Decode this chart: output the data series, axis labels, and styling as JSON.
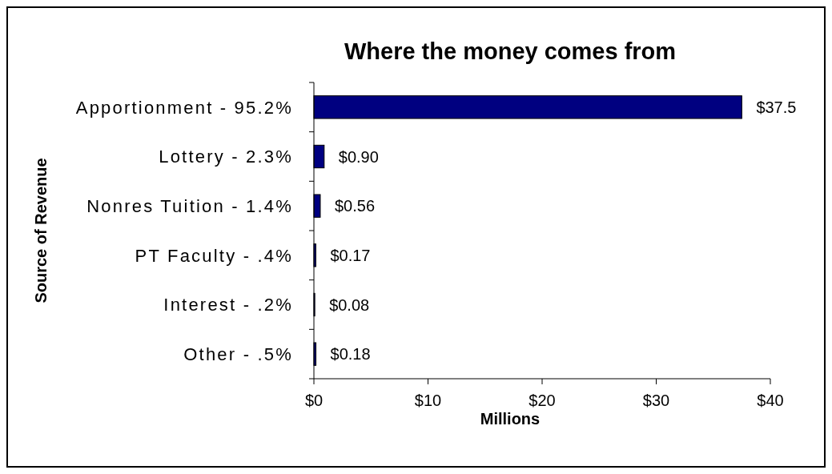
{
  "chart_data": {
    "type": "bar",
    "orientation": "horizontal",
    "title": "Where the money comes from",
    "xlabel": "Millions",
    "ylabel": "Source of Revenue",
    "categories": [
      "Apportionment - 95.2%",
      "Lottery - 2.3%",
      "Nonres Tuition - 1.4%",
      "PT Faculty - .4%",
      "Interest - .2%",
      "Other - .5%"
    ],
    "values": [
      37.5,
      0.9,
      0.56,
      0.17,
      0.08,
      0.18
    ],
    "value_labels": [
      "$37.5",
      "$0.90",
      "$0.56",
      "$0.17",
      "$0.08",
      "$0.18"
    ],
    "color": "#000080",
    "xlim": [
      0,
      40
    ],
    "xticks": [
      {
        "value": 0,
        "label": "$0"
      },
      {
        "value": 10,
        "label": "$10"
      },
      {
        "value": 20,
        "label": "$20"
      },
      {
        "value": 30,
        "label": "$30"
      },
      {
        "value": 40,
        "label": "$40"
      }
    ],
    "grid": false,
    "legend": false
  }
}
